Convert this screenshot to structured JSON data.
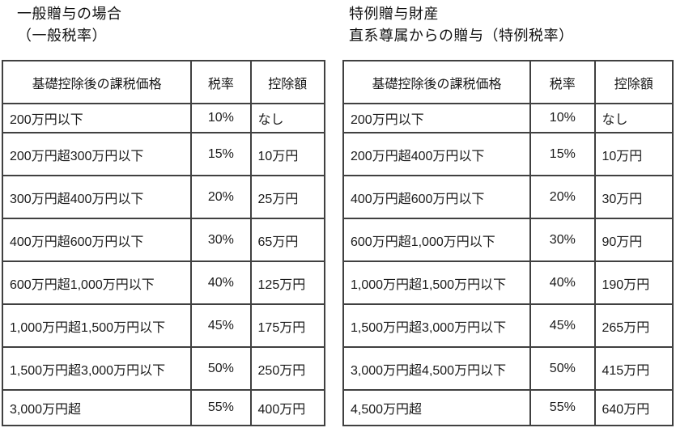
{
  "page": {
    "background": "#ffffff",
    "text_color": "#1a1a1a",
    "border_color": "#404040"
  },
  "tables": [
    {
      "id": "general",
      "title_lines": [
        "一般贈与の場合",
        "（一般税率）"
      ],
      "headers": [
        "基礎控除後の課税価格",
        "税率",
        "控除額"
      ],
      "rows": [
        [
          "200万円以下",
          "10%",
          "なし"
        ],
        [
          "200万円超300万円以下",
          "15%",
          "10万円"
        ],
        [
          "300万円超400万円以下",
          "20%",
          "25万円"
        ],
        [
          "400万円超600万円以下",
          "30%",
          "65万円"
        ],
        [
          "600万円超1,000万円以下",
          "40%",
          "125万円"
        ],
        [
          "1,000万円超1,500万円以下",
          "45%",
          "175万円"
        ],
        [
          "1,500万円超3,000万円以下",
          "50%",
          "250万円"
        ],
        [
          "3,000万円超",
          "55%",
          "400万円"
        ]
      ]
    },
    {
      "id": "special",
      "title_lines": [
        "特例贈与財産",
        "直系尊属からの贈与（特例税率）"
      ],
      "headers": [
        "基礎控除後の課税価格",
        "税率",
        "控除額"
      ],
      "rows": [
        [
          "200万円以下",
          "10%",
          "なし"
        ],
        [
          "200万円超400万円以下",
          "15%",
          "10万円"
        ],
        [
          "400万円超600万円以下",
          "20%",
          "30万円"
        ],
        [
          "600万円超1,000万円以下",
          "30%",
          "90万円"
        ],
        [
          "1,000万円超1,500万円以下",
          "40%",
          "190万円"
        ],
        [
          "1,500万円超3,000万円以下",
          "45%",
          "265万円"
        ],
        [
          "3,000万円超4,500万円以下",
          "50%",
          "415万円"
        ],
        [
          "4,500万円超",
          "55%",
          "640万円"
        ]
      ]
    }
  ]
}
